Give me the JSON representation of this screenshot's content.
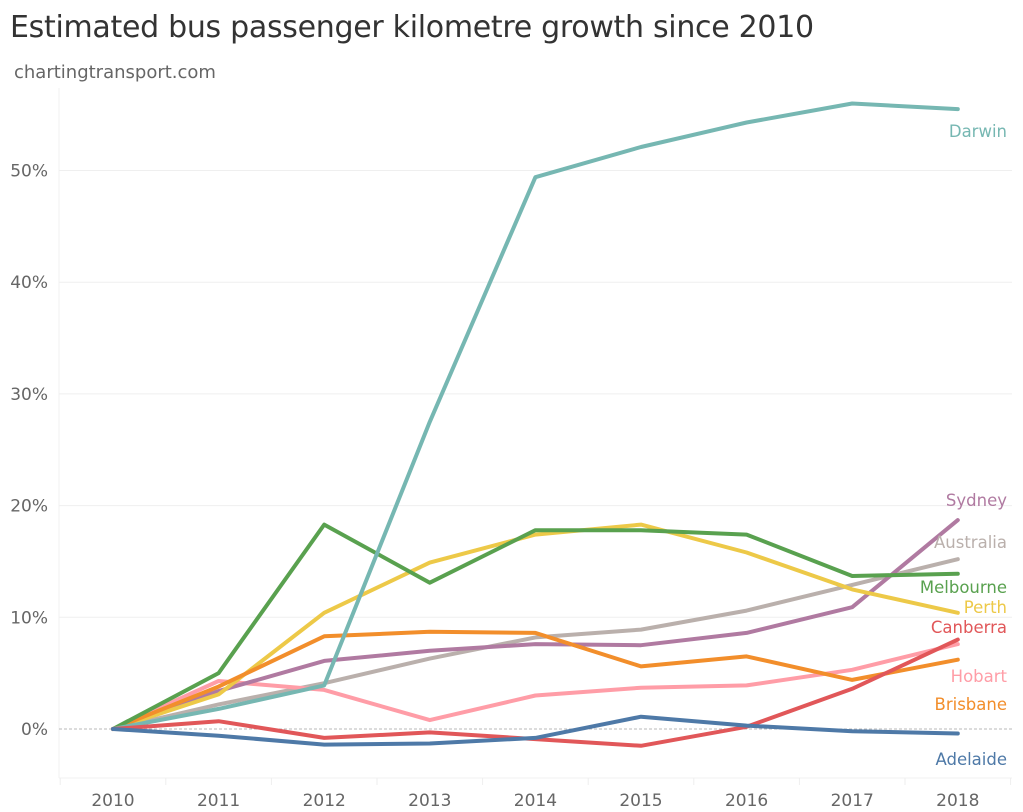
{
  "header": {
    "title": "Estimated bus passenger kilometre growth since 2010",
    "subtitle": "chartingtransport.com"
  },
  "chart_data": {
    "type": "line",
    "title": "Estimated bus passenger kilometre growth since 2010",
    "subtitle": "chartingtransport.com",
    "xlabel": "",
    "ylabel": "",
    "x": [
      "2010",
      "2011",
      "2012",
      "2013",
      "2014",
      "2015",
      "2016",
      "2017",
      "2018"
    ],
    "yticks": [
      0,
      10,
      20,
      30,
      40,
      50
    ],
    "ytick_labels": [
      "0%",
      "10%",
      "20%",
      "30%",
      "40%",
      "50%"
    ],
    "ylim": [
      -4.5,
      57.5
    ],
    "y_unit": "%",
    "grid": "horizontal",
    "zero_line": "dashed",
    "legend": "inline labels at right end of each line",
    "series": [
      {
        "name": "Darwin",
        "color": "#76b7b2",
        "values": [
          0,
          1.8,
          3.9,
          27.5,
          49.4,
          52.1,
          54.3,
          56.0,
          55.5
        ]
      },
      {
        "name": "Sydney",
        "color": "#b07aa1",
        "values": [
          0,
          3.4,
          6.1,
          7.0,
          7.6,
          7.5,
          8.6,
          10.9,
          18.7
        ]
      },
      {
        "name": "Australia",
        "color": "#bab0ac",
        "values": [
          0,
          2.2,
          4.1,
          6.3,
          8.2,
          8.9,
          10.6,
          12.9,
          15.2
        ]
      },
      {
        "name": "Melbourne",
        "color": "#59a14f",
        "values": [
          0,
          5.0,
          18.3,
          13.1,
          17.8,
          17.8,
          17.4,
          13.7,
          13.9
        ]
      },
      {
        "name": "Perth",
        "color": "#edc948",
        "values": [
          0,
          3.1,
          10.4,
          14.9,
          17.4,
          18.3,
          15.8,
          12.5,
          10.4
        ]
      },
      {
        "name": "Canberra",
        "color": "#e15759",
        "values": [
          0,
          0.7,
          -0.8,
          -0.3,
          -0.9,
          -1.5,
          0.2,
          3.6,
          8.0
        ]
      },
      {
        "name": "Hobart",
        "color": "#ff9da7",
        "values": [
          0,
          4.3,
          3.5,
          0.8,
          3.0,
          3.7,
          3.9,
          5.3,
          7.6
        ]
      },
      {
        "name": "Brisbane",
        "color": "#f28e2b",
        "values": [
          0,
          3.8,
          8.3,
          8.7,
          8.6,
          5.6,
          6.5,
          4.4,
          6.2
        ]
      },
      {
        "name": "Adelaide",
        "color": "#4e79a7",
        "values": [
          0,
          -0.6,
          -1.4,
          -1.3,
          -0.8,
          1.1,
          0.3,
          -0.2,
          -0.4
        ]
      }
    ],
    "end_labels": [
      {
        "series": "Darwin",
        "label": "Darwin"
      },
      {
        "series": "Sydney",
        "label": "Sydney"
      },
      {
        "series": "Australia",
        "label": "Australia"
      },
      {
        "series": "Melbourne",
        "label": "Melbourne"
      },
      {
        "series": "Perth",
        "label": "Perth"
      },
      {
        "series": "Canberra",
        "label": "Canberra"
      },
      {
        "series": "Hobart",
        "label": "Hobart"
      },
      {
        "series": "Brisbane",
        "label": "Brisbane"
      },
      {
        "series": "Adelaide",
        "label": "Adelaide"
      }
    ]
  }
}
